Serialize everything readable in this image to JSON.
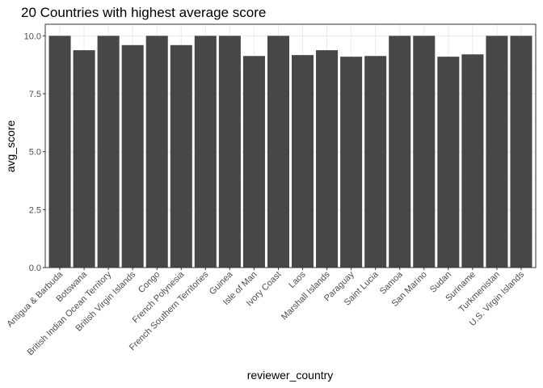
{
  "chart_data": {
    "type": "bar",
    "title": "20 Countries with highest average score",
    "xlabel": "reviewer_country",
    "ylabel": "avg_score",
    "ylim": [
      0,
      10.5
    ],
    "yticks": [
      "0.0",
      "2.5",
      "5.0",
      "7.5",
      "10.0"
    ],
    "grid": true,
    "bar_color": "#474747",
    "categories": [
      "Antigua & Barbuda",
      "Botswana",
      "British Indian Ocean Territory",
      "British Virgin Islands",
      "Congo",
      "French Polynesia",
      "French Southern Territories",
      "Guinea",
      "Isle of Man",
      "Ivory Coast",
      "Laos",
      "Marshall Islands",
      "Paraguay",
      "Saint Lucia",
      "Samoa",
      "San Marino",
      "Sudan",
      "Suriname",
      "Turkmenistan",
      "U.S. Virgin Islands"
    ],
    "values": [
      10.0,
      9.38,
      10.0,
      9.6,
      10.0,
      9.6,
      10.0,
      10.0,
      9.13,
      10.0,
      9.17,
      9.38,
      9.1,
      9.13,
      10.0,
      10.0,
      9.1,
      9.2,
      10.0,
      10.0
    ]
  }
}
